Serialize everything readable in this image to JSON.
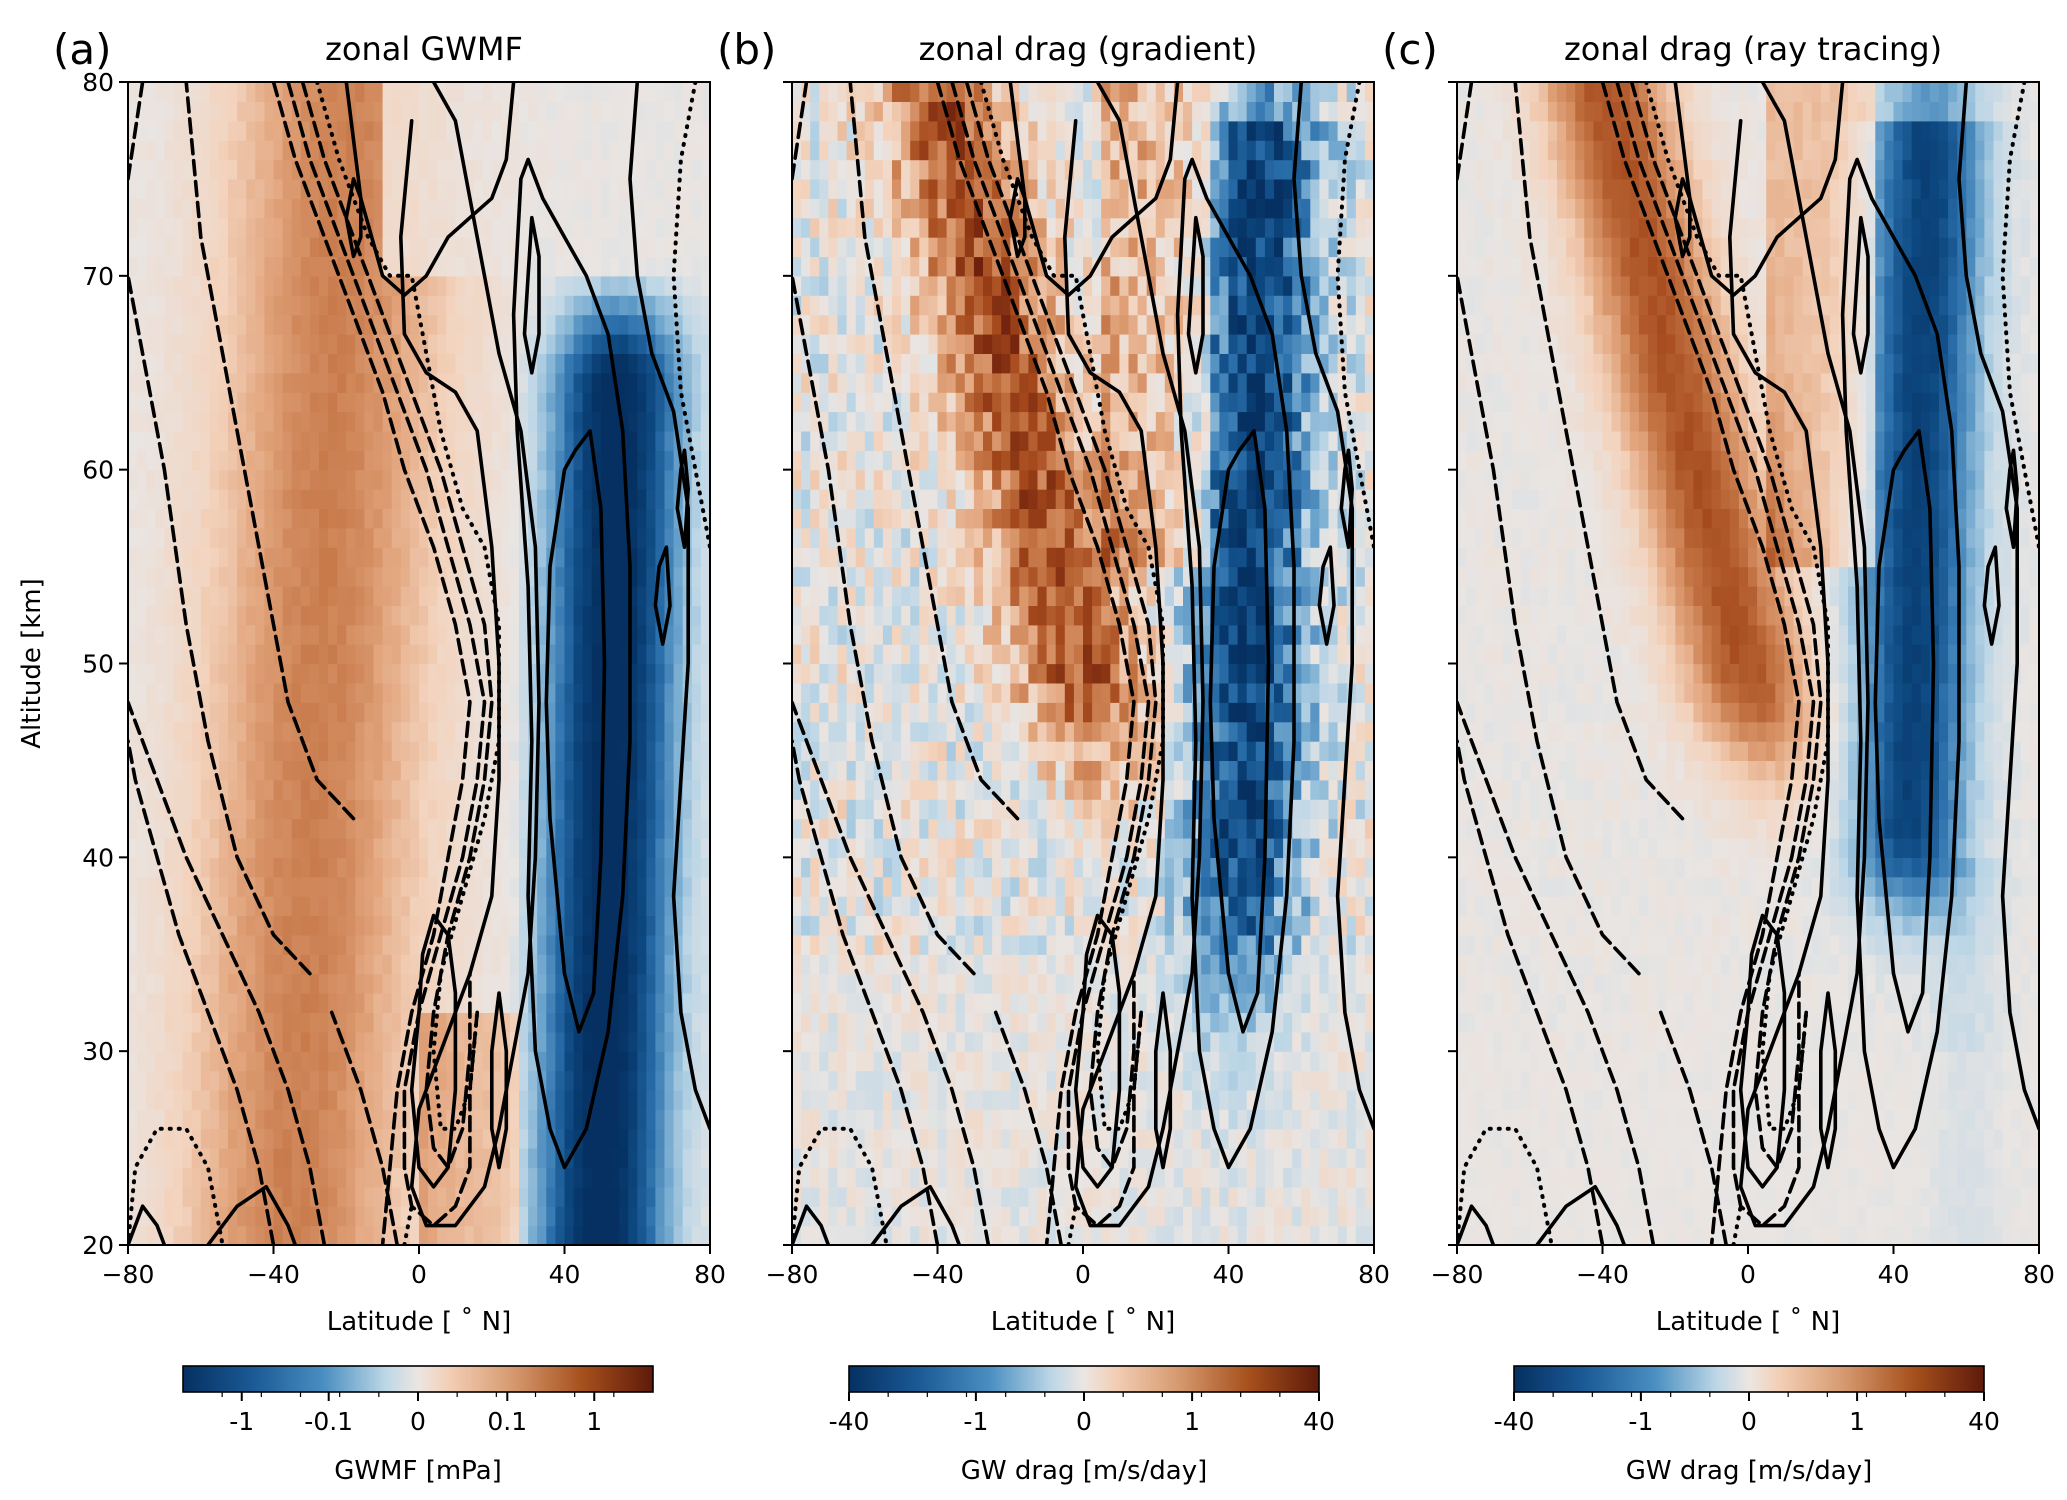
{
  "chart_data": [
    {
      "type": "heatmap",
      "panel_label": "(a)",
      "title": "zonal GWMF",
      "xlabel": "Latitude [$^\\circ$N]",
      "xlabel_text": "Latitude [ ˚ N]",
      "ylabel": "Altitude [km]",
      "xlim": [
        -80,
        80
      ],
      "ylim": [
        20,
        80
      ],
      "xticks": [
        -80,
        -40,
        0,
        40,
        80
      ],
      "yticks": [
        20,
        30,
        40,
        50,
        60,
        70,
        80
      ],
      "xticklabels": [
        "−80",
        "−40",
        "0",
        "40",
        "80"
      ],
      "yticklabels": [
        "20",
        "30",
        "40",
        "50",
        "60",
        "70",
        "80"
      ],
      "colorbar": {
        "label": "GWMF [mPa]",
        "scale": "symlog",
        "range": [
          -5,
          5
        ],
        "ticks": [
          -1,
          -0.1,
          0,
          0.1,
          1
        ],
        "ticklabels": [
          "-1",
          "-0.1",
          "0",
          "0.1",
          "1"
        ],
        "cmap": [
          "#053061",
          "#2166ac",
          "#4393c3",
          "#92c5de",
          "#e9e5e3",
          "#f4c5a4",
          "#d6906a",
          "#b35806",
          "#67001f"
        ]
      },
      "field_description_values": {
        "westward_max_lat": 50,
        "eastward_band_lat": [
          -60,
          -10
        ]
      }
    },
    {
      "type": "heatmap",
      "panel_label": "(b)",
      "title": "zonal drag (gradient)",
      "xlabel_text": "Latitude [ ˚ N]",
      "xlim": [
        -80,
        80
      ],
      "ylim": [
        20,
        80
      ],
      "xticks": [
        -80,
        -40,
        0,
        40,
        80
      ],
      "xticklabels": [
        "−80",
        "−40",
        "0",
        "40",
        "80"
      ],
      "colorbar": {
        "label": "GW drag [m/s/day]",
        "scale": "symlog",
        "range": [
          -40,
          40
        ],
        "ticks": [
          -40,
          -1,
          0,
          1,
          40
        ],
        "ticklabels": [
          "-40",
          "-1",
          "0",
          "1",
          "40"
        ]
      }
    },
    {
      "type": "heatmap",
      "panel_label": "(c)",
      "title": "zonal drag (ray tracing)",
      "xlabel_text": "Latitude [ ˚ N]",
      "xlim": [
        -80,
        80
      ],
      "ylim": [
        20,
        80
      ],
      "xticks": [
        -80,
        -40,
        0,
        40,
        80
      ],
      "xticklabels": [
        "−80",
        "−40",
        "0",
        "40",
        "80"
      ],
      "colorbar": {
        "label": "GW drag [m/s/day]",
        "scale": "symlog",
        "range": [
          -40,
          40
        ],
        "ticks": [
          -40,
          -1,
          0,
          1,
          40
        ],
        "ticklabels": [
          "-40",
          "-1",
          "0",
          "1",
          "40"
        ]
      }
    }
  ],
  "contours": {
    "description_styles": {
      "positive": "solid",
      "negative": "dashed",
      "near_zero": "dotted"
    },
    "lines": [
      {
        "style": "solid",
        "points": [
          [
            40,
            60
          ],
          [
            36,
            55
          ],
          [
            35,
            48
          ],
          [
            36,
            42
          ],
          [
            40,
            34
          ],
          [
            44,
            31
          ],
          [
            48,
            33
          ],
          [
            50,
            40
          ],
          [
            51,
            50
          ],
          [
            50,
            58
          ],
          [
            47,
            62
          ],
          [
            43,
            61
          ],
          [
            40,
            60
          ]
        ]
      },
      {
        "style": "solid",
        "points": [
          [
            28,
            75
          ],
          [
            26,
            68
          ],
          [
            27,
            62
          ],
          [
            30,
            54
          ],
          [
            31,
            46
          ],
          [
            30,
            38
          ],
          [
            32,
            30
          ],
          [
            36,
            26
          ],
          [
            40,
            24
          ],
          [
            46,
            26
          ],
          [
            52,
            31
          ],
          [
            56,
            38
          ],
          [
            58,
            46
          ],
          [
            58,
            55
          ],
          [
            56,
            62
          ],
          [
            52,
            67
          ],
          [
            46,
            70
          ],
          [
            40,
            72
          ],
          [
            34,
            74
          ],
          [
            30,
            76
          ],
          [
            28,
            75
          ]
        ]
      },
      {
        "style": "solid",
        "points": [
          [
            -2,
            78
          ],
          [
            -5,
            72
          ],
          [
            -4,
            67
          ],
          [
            2,
            65
          ],
          [
            10,
            64
          ],
          [
            16,
            62
          ],
          [
            20,
            56
          ],
          [
            22,
            50
          ],
          [
            22,
            44
          ],
          [
            20,
            38
          ],
          [
            14,
            34
          ],
          [
            6,
            30
          ],
          [
            0,
            27
          ],
          [
            -2,
            23
          ],
          [
            2,
            21
          ],
          [
            10,
            21
          ],
          [
            18,
            23
          ],
          [
            22,
            26
          ],
          [
            26,
            30
          ],
          [
            30,
            34
          ],
          [
            32,
            40
          ],
          [
            33,
            48
          ],
          [
            32,
            56
          ],
          [
            28,
            62
          ],
          [
            22,
            66
          ],
          [
            18,
            70
          ],
          [
            14,
            74
          ],
          [
            10,
            78
          ],
          [
            4,
            80
          ]
        ]
      },
      {
        "style": "solid",
        "points": [
          [
            -20,
            80
          ],
          [
            -16,
            74
          ],
          [
            -10,
            70
          ],
          [
            -4,
            69
          ],
          [
            2,
            70
          ],
          [
            8,
            72
          ],
          [
            14,
            73
          ],
          [
            20,
            74
          ],
          [
            24,
            76
          ],
          [
            26,
            80
          ]
        ]
      },
      {
        "style": "solid",
        "points": [
          [
            0,
            32
          ],
          [
            -2,
            28
          ],
          [
            0,
            24
          ],
          [
            4,
            23
          ],
          [
            8,
            24
          ],
          [
            10,
            28
          ],
          [
            10,
            33
          ],
          [
            8,
            36
          ],
          [
            4,
            37
          ],
          [
            1,
            35
          ],
          [
            0,
            32
          ]
        ]
      },
      {
        "style": "solid",
        "points": [
          [
            20,
            26
          ],
          [
            22,
            24
          ],
          [
            24,
            26
          ],
          [
            24,
            30
          ],
          [
            22,
            33
          ],
          [
            20,
            30
          ],
          [
            20,
            26
          ]
        ]
      },
      {
        "style": "solid",
        "points": [
          [
            60,
            80
          ],
          [
            58,
            75
          ],
          [
            60,
            70
          ],
          [
            64,
            66
          ],
          [
            70,
            63
          ],
          [
            74,
            58
          ],
          [
            74,
            50
          ],
          [
            72,
            44
          ],
          [
            70,
            38
          ],
          [
            72,
            32
          ],
          [
            76,
            28
          ],
          [
            80,
            26
          ]
        ]
      },
      {
        "style": "solid",
        "points": [
          [
            30,
            70
          ],
          [
            29,
            67
          ],
          [
            31,
            65
          ],
          [
            33,
            67
          ],
          [
            33,
            71
          ],
          [
            31,
            73
          ],
          [
            30,
            70
          ]
        ]
      },
      {
        "style": "solid",
        "points": [
          [
            -20,
            73
          ],
          [
            -18,
            71
          ],
          [
            -16,
            72
          ],
          [
            -16,
            74
          ],
          [
            -18,
            75
          ],
          [
            -20,
            73
          ]
        ]
      },
      {
        "style": "solid",
        "points": [
          [
            -58,
            20
          ],
          [
            -50,
            22
          ],
          [
            -42,
            23
          ],
          [
            -36,
            21
          ],
          [
            -34,
            20
          ]
        ]
      },
      {
        "style": "solid",
        "points": [
          [
            -80,
            20
          ],
          [
            -76,
            22
          ],
          [
            -72,
            21
          ],
          [
            -70,
            20
          ]
        ]
      },
      {
        "style": "solid",
        "points": [
          [
            66,
            55
          ],
          [
            65,
            53
          ],
          [
            67,
            51
          ],
          [
            69,
            53
          ],
          [
            68,
            56
          ],
          [
            66,
            55
          ]
        ]
      },
      {
        "style": "solid",
        "points": [
          [
            72,
            60
          ],
          [
            71,
            58
          ],
          [
            73,
            56
          ],
          [
            74,
            59
          ],
          [
            73,
            61
          ],
          [
            72,
            60
          ]
        ]
      },
      {
        "style": "dashed",
        "points": [
          [
            -18,
            42
          ],
          [
            -28,
            44
          ],
          [
            -36,
            48
          ],
          [
            -44,
            56
          ],
          [
            -52,
            64
          ],
          [
            -60,
            72
          ],
          [
            -64,
            80
          ]
        ]
      },
      {
        "style": "dashed",
        "points": [
          [
            -30,
            34
          ],
          [
            -40,
            36
          ],
          [
            -50,
            40
          ],
          [
            -58,
            46
          ],
          [
            -64,
            52
          ],
          [
            -70,
            60
          ],
          [
            -76,
            66
          ],
          [
            -80,
            70
          ]
        ]
      },
      {
        "style": "dashed",
        "points": [
          [
            -40,
            20
          ],
          [
            -44,
            24
          ],
          [
            -50,
            28
          ],
          [
            -58,
            32
          ],
          [
            -66,
            36
          ],
          [
            -72,
            40
          ],
          [
            -78,
            44
          ],
          [
            -80,
            46
          ]
        ]
      },
      {
        "style": "dashed",
        "points": [
          [
            -26,
            20
          ],
          [
            -30,
            24
          ],
          [
            -36,
            28
          ],
          [
            -44,
            32
          ],
          [
            -54,
            36
          ],
          [
            -64,
            40
          ],
          [
            -72,
            44
          ],
          [
            -80,
            48
          ]
        ]
      },
      {
        "style": "dashed",
        "points": [
          [
            -6,
            20
          ],
          [
            -10,
            24
          ],
          [
            -16,
            28
          ],
          [
            -24,
            32
          ]
        ]
      },
      {
        "style": "dashed",
        "points": [
          [
            -80,
            75
          ],
          [
            -76,
            80
          ]
        ]
      },
      {
        "style": "dashed",
        "points": [
          [
            -40,
            80
          ],
          [
            -34,
            76
          ],
          [
            -26,
            72
          ],
          [
            -18,
            68
          ],
          [
            -10,
            64
          ],
          [
            -4,
            60
          ],
          [
            4,
            56
          ],
          [
            10,
            52
          ],
          [
            14,
            48
          ],
          [
            12,
            44
          ],
          [
            8,
            40
          ],
          [
            4,
            36
          ],
          [
            -2,
            32
          ],
          [
            -6,
            28
          ],
          [
            -8,
            24
          ],
          [
            -10,
            20
          ]
        ]
      },
      {
        "style": "dashed",
        "points": [
          [
            -36,
            80
          ],
          [
            -30,
            76
          ],
          [
            -22,
            72
          ],
          [
            -14,
            68
          ],
          [
            -6,
            64
          ],
          [
            2,
            60
          ],
          [
            8,
            56
          ],
          [
            14,
            52
          ],
          [
            18,
            48
          ],
          [
            16,
            44
          ],
          [
            12,
            40
          ],
          [
            6,
            36
          ],
          [
            0,
            32
          ],
          [
            -4,
            28
          ],
          [
            -4,
            24
          ],
          [
            -2,
            22
          ],
          [
            4,
            21
          ],
          [
            10,
            22
          ],
          [
            14,
            24
          ],
          [
            14,
            28
          ],
          [
            16,
            32
          ]
        ]
      },
      {
        "style": "dashed",
        "points": [
          [
            -32,
            80
          ],
          [
            -26,
            76
          ],
          [
            -18,
            72
          ],
          [
            -10,
            68
          ],
          [
            -2,
            64
          ],
          [
            6,
            60
          ],
          [
            12,
            56
          ],
          [
            18,
            52
          ],
          [
            20,
            48
          ],
          [
            18,
            44
          ],
          [
            14,
            40
          ],
          [
            8,
            36
          ],
          [
            4,
            32
          ],
          [
            2,
            28
          ],
          [
            4,
            25
          ],
          [
            8,
            24
          ],
          [
            12,
            26
          ],
          [
            14,
            30
          ],
          [
            14,
            34
          ]
        ]
      },
      {
        "style": "dotted",
        "points": [
          [
            -28,
            80
          ],
          [
            -22,
            76
          ],
          [
            -14,
            72
          ],
          [
            -8,
            70
          ],
          [
            -2,
            70
          ],
          [
            2,
            66
          ],
          [
            6,
            62
          ],
          [
            12,
            58
          ],
          [
            18,
            56
          ],
          [
            22,
            52
          ],
          [
            22,
            46
          ],
          [
            18,
            42
          ],
          [
            12,
            38
          ],
          [
            6,
            34
          ],
          [
            4,
            30
          ],
          [
            6,
            26
          ],
          [
            10,
            26
          ],
          [
            14,
            28
          ],
          [
            16,
            32
          ]
        ]
      },
      {
        "style": "dotted",
        "points": [
          [
            -80,
            20
          ],
          [
            -78,
            24
          ],
          [
            -72,
            26
          ],
          [
            -64,
            26
          ],
          [
            -58,
            24
          ],
          [
            -54,
            20
          ]
        ]
      },
      {
        "style": "dotted",
        "points": [
          [
            -4,
            20
          ],
          [
            -2,
            22
          ]
        ]
      },
      {
        "style": "dotted",
        "points": [
          [
            76,
            80
          ],
          [
            72,
            76
          ],
          [
            70,
            70
          ],
          [
            72,
            64
          ],
          [
            76,
            60
          ],
          [
            80,
            56
          ]
        ]
      }
    ]
  }
}
